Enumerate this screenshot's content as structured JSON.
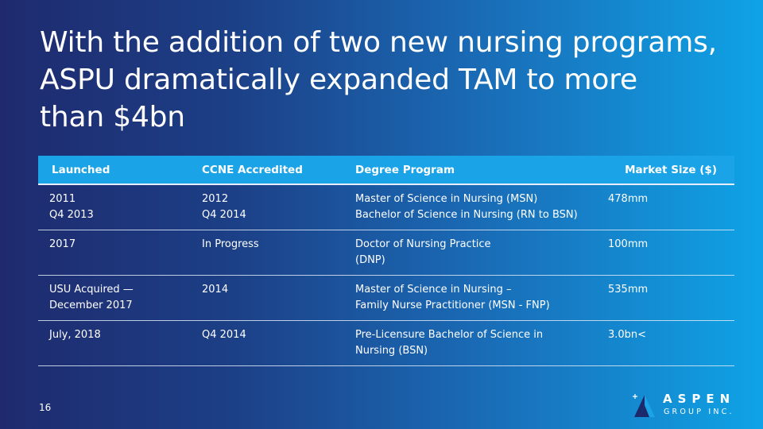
{
  "slide": {
    "title_lines": [
      "With the addition of two new nursing programs,",
      "ASPU dramatically expanded TAM to more",
      "than $4bn"
    ],
    "page_number": "16"
  },
  "table": {
    "headers": [
      "Launched",
      "CCNE Accredited",
      "Degree Program",
      "Market Size ($)"
    ],
    "rows": [
      {
        "launched": [
          "2011",
          "Q4 2013"
        ],
        "ccne": [
          "2012",
          "Q4 2014"
        ],
        "program": [
          "Master of Science in Nursing (MSN)",
          "Bachelor of Science in Nursing (RN to BSN)"
        ],
        "market_size": "478mm"
      },
      {
        "launched": [
          "2017"
        ],
        "ccne": [
          "In Progress"
        ],
        "program": [
          "Doctor of Nursing Practice",
          "(DNP)"
        ],
        "market_size": "100mm"
      },
      {
        "launched": [
          "USU Acquired —",
          "December 2017"
        ],
        "ccne": [
          "2014"
        ],
        "program": [
          "Master of Science in Nursing –",
          "Family Nurse Practitioner (MSN - FNP)"
        ],
        "market_size": "535mm"
      },
      {
        "launched": [
          "July, 2018"
        ],
        "ccne": [
          "Q4 2014"
        ],
        "program": [
          "Pre-Licensure Bachelor of Science in",
          "Nursing (BSN)"
        ],
        "market_size": "3.0bn<"
      }
    ]
  },
  "logo": {
    "icon": "aspen-mountain-logo-icon",
    "top_text": "ASPEN",
    "bottom_text": "GROUP INC.",
    "colors": {
      "mark_dark": "#1c2a6b",
      "mark_light": "#1aa3e6"
    }
  },
  "colors": {
    "background_start": "#1f2a6e",
    "background_end": "#0fa3e6",
    "header_fill": "#1aa3e6",
    "text": "#ffffff"
  }
}
